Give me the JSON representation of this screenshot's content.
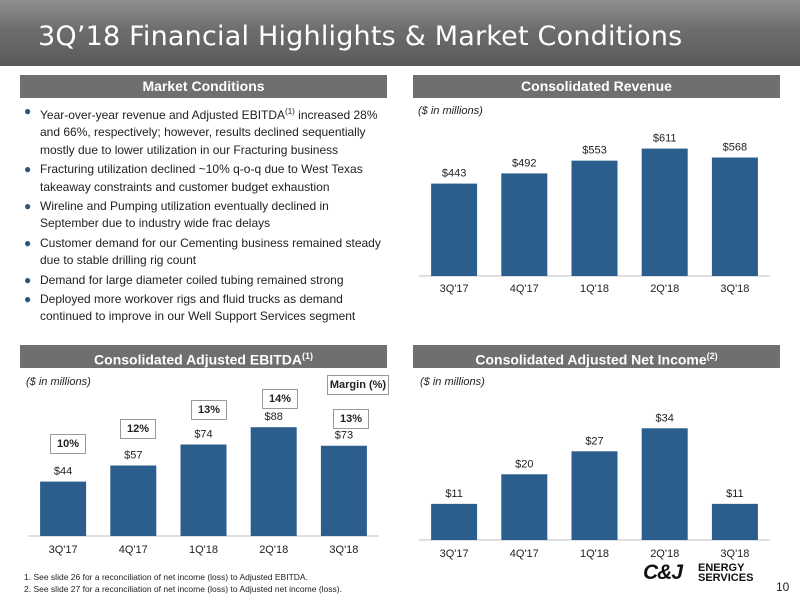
{
  "title": "3Q’18 Financial Highlights & Market Conditions",
  "market": {
    "heading": "Market Conditions",
    "bullets": [
      {
        "pre": "Year-over-year revenue and Adjusted EBITDA",
        "sup": "(1)",
        "post": " increased 28% and 66%, respectively; however, results declined sequentially mostly due to lower utilization in our Fracturing business"
      },
      {
        "pre": "Fracturing utilization declined ~10% q-o-q due to West Texas takeaway constraints and customer budget exhaustion",
        "sup": "",
        "post": ""
      },
      {
        "pre": "Wireline and Pumping utilization eventually declined in September due to industry wide frac delays",
        "sup": "",
        "post": ""
      },
      {
        "pre": "Customer demand for our Cementing business remained steady due to stable drilling rig count",
        "sup": "",
        "post": ""
      },
      {
        "pre": "Demand for large diameter coiled tubing remained strong",
        "sup": "",
        "post": ""
      },
      {
        "pre": "Deployed more workover rigs and fluid trucks as demand continued to improve in our Well Support Services segment",
        "sup": "",
        "post": ""
      }
    ]
  },
  "revenue": {
    "heading": "Consolidated Revenue",
    "units": "($ in millions)"
  },
  "ebitda": {
    "heading": "Consolidated Adjusted EBITDA",
    "heading_sup": "(1)",
    "units": "($ in millions)",
    "margin_key": "Margin (%)",
    "margins": [
      "10%",
      "12%",
      "13%",
      "14%",
      "13%"
    ]
  },
  "netincome": {
    "heading": "Consolidated Adjusted Net Income",
    "heading_sup": "(2)",
    "units": "($ in millions)"
  },
  "chart_data": [
    {
      "type": "bar",
      "categories": [
        "3Q'17",
        "4Q'17",
        "1Q'18",
        "2Q'18",
        "3Q'18"
      ],
      "values": [
        443,
        492,
        553,
        611,
        568
      ],
      "labels": [
        "$443",
        "$492",
        "$553",
        "$611",
        "$568"
      ],
      "color": "#2b5e8c",
      "ylim": [
        0,
        700
      ]
    },
    {
      "type": "bar",
      "categories": [
        "3Q'17",
        "4Q'17",
        "1Q'18",
        "2Q'18",
        "3Q'18"
      ],
      "values": [
        44,
        57,
        74,
        88,
        73
      ],
      "labels": [
        "$44",
        "$57",
        "$74",
        "$88",
        "$73"
      ],
      "color": "#2b5e8c",
      "ylim": [
        0,
        110
      ]
    },
    {
      "type": "bar",
      "categories": [
        "3Q'17",
        "4Q'17",
        "1Q'18",
        "2Q'18",
        "3Q'18"
      ],
      "values": [
        11,
        20,
        27,
        34,
        11
      ],
      "labels": [
        "$11",
        "$20",
        "$27",
        "$34",
        "$11"
      ],
      "color": "#2b5e8c",
      "ylim": [
        0,
        42
      ]
    }
  ],
  "footnotes": [
    "1. See slide 26 for a reconciliation of net income (loss) to Adjusted EBITDA.",
    "2. See slide 27 for a reconciliation of net income (loss) to Adjusted net income (loss)."
  ],
  "logo": {
    "mark": "C&J",
    "line1": "ENERGY",
    "line2": "SERVICES"
  },
  "page_number": "10"
}
